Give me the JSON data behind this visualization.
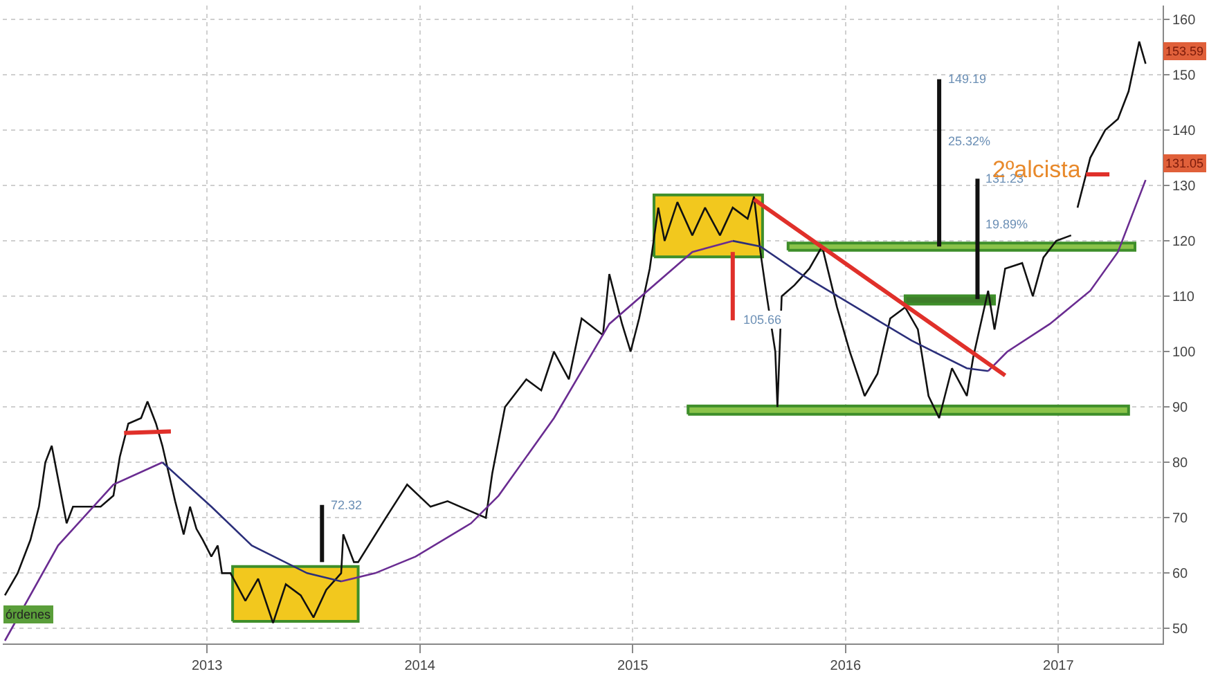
{
  "chart_data": {
    "type": "line",
    "xlim": [
      2012.04,
      2017.49
    ],
    "xticks": [
      2013,
      2014,
      2015,
      2016,
      2017
    ],
    "ylim": [
      47.3,
      162.5
    ],
    "yticks": [
      50,
      60,
      70,
      80,
      90,
      100,
      110,
      120,
      130,
      140,
      150,
      160
    ],
    "grid": true,
    "marker": "none",
    "line_style": "solid",
    "series": [
      {
        "type": "area",
        "color": "#f2c81e",
        "x": [
          2013.12,
          2013.71,
          2013.71,
          2013.12,
          2013.12
        ],
        "values": [
          51.3,
          51.3,
          61.2,
          61.2,
          51.3
        ]
      },
      {
        "type": "area",
        "color": "#f2c81e",
        "x": [
          2015.1,
          2015.61,
          2015.61,
          2015.1,
          2015.1
        ],
        "values": [
          117.1,
          117.1,
          128.3,
          128.3,
          117.1
        ]
      },
      {
        "type": "area",
        "color": "#8bc34a",
        "x": [
          2015.73,
          2017.36,
          2017.36,
          2015.73,
          2015.73
        ],
        "values": [
          118.3,
          118.3,
          119.6,
          119.6,
          118.3
        ]
      },
      {
        "type": "area",
        "color": "#8bc34a",
        "x": [
          2015.26,
          2017.33,
          2017.33,
          2015.26,
          2015.26
        ],
        "values": [
          88.7,
          88.7,
          90.2,
          90.2,
          88.7
        ]
      },
      {
        "type": "area",
        "color": "#3e7d2a",
        "x": [
          2016.28,
          2016.7,
          2016.7,
          2016.28,
          2016.28
        ],
        "values": [
          108.6,
          108.6,
          110.1,
          110.1,
          108.6
        ]
      },
      {
        "color": "#111111",
        "x": [
          2012.05,
          2012.11,
          2012.17,
          2012.21,
          2012.24,
          2012.27,
          2012.3,
          2012.34,
          2012.37,
          2012.43,
          2012.5,
          2012.56,
          2012.59,
          2012.63,
          2012.69,
          2012.72,
          2012.76,
          2012.79,
          2012.82,
          2012.85,
          2012.89,
          2012.92,
          2012.95,
          2012.98,
          2013.02,
          2013.05,
          2013.07,
          2013.11,
          2013.18,
          2013.24,
          2013.31,
          2013.37,
          2013.44,
          2013.5,
          2013.56,
          2013.63,
          2013.64,
          2013.69,
          2013.71,
          2013.84,
          2013.94,
          2014.05,
          2014.13,
          2014.31,
          2014.34,
          2014.4,
          2014.5,
          2014.57,
          2014.63,
          2014.7,
          2014.76,
          2014.86,
          2014.89,
          2014.95,
          2014.99,
          2015.03,
          2015.08,
          2015.12,
          2015.15,
          2015.21,
          2015.28,
          2015.34,
          2015.41,
          2015.47,
          2015.54,
          2015.57,
          2015.6,
          2015.63,
          2015.67,
          2015.68,
          2015.7,
          2015.76,
          2015.83,
          2015.89,
          2015.96,
          2016.02,
          2016.09,
          2016.15,
          2016.21,
          2016.28,
          2016.34,
          2016.39,
          2016.44,
          2016.5,
          2016.57,
          2016.6,
          2016.67,
          2016.7,
          2016.75,
          2016.83,
          2016.88,
          2016.93,
          2016.99,
          2017.06,
          2017.08,
          2017.09,
          2017.15,
          2017.22,
          2017.28,
          2017.33,
          2017.38,
          2017.41
        ],
        "values": [
          56,
          60,
          66,
          72,
          80,
          83,
          77,
          69,
          72,
          72,
          72,
          74,
          81,
          87,
          88,
          91,
          87,
          83,
          78,
          73,
          67,
          72,
          68,
          66,
          63,
          65,
          60,
          60,
          55,
          59,
          51,
          58,
          56,
          52,
          57,
          60,
          67,
          62,
          62,
          70,
          76,
          72,
          73,
          70,
          78,
          90,
          95,
          93,
          100,
          95,
          106,
          103,
          114,
          105,
          100,
          106,
          115,
          126,
          120,
          127,
          121,
          126,
          121,
          126,
          124,
          128,
          118,
          110,
          100,
          90,
          110,
          112,
          115,
          119,
          108,
          100,
          92,
          96,
          106,
          108,
          104,
          92,
          88,
          97,
          92,
          99,
          111,
          104,
          115,
          116,
          110,
          117,
          120,
          121,
          null,
          126,
          135,
          140,
          142,
          147,
          156,
          152
        ]
      },
      {
        "color": "#6a2c91",
        "x": [
          2012.05,
          2012.3,
          2012.56,
          2012.79,
          2013.2,
          2013.63,
          2013.79,
          2013.98,
          2014.24,
          2014.37,
          2014.63,
          2014.89,
          2015.28,
          2015.47,
          2016.0,
          2016.67,
          2016.76,
          2016.96,
          2017.15,
          2017.28,
          2017.41
        ],
        "values": [
          47.8,
          65,
          76,
          80,
          null,
          58.5,
          60,
          63,
          69,
          74,
          88,
          105,
          118,
          120,
          null,
          96.5,
          100,
          105,
          111,
          118,
          131
        ]
      },
      {
        "color": "#2b2f7a",
        "x": [
          2012.79,
          2013.02,
          2013.21,
          2013.47,
          2013.63,
          2014.5,
          2015.47,
          2015.6,
          2015.79,
          2016.05,
          2016.31,
          2016.57,
          2016.67
        ],
        "values": [
          80,
          72,
          65,
          60,
          58.5,
          null,
          120,
          119,
          114,
          108,
          102,
          97,
          96.5
        ]
      },
      {
        "type": "line",
        "color": "#e0302a",
        "x": [
          2012.61,
          2012.83
        ],
        "values": [
          85.3,
          85.6
        ]
      },
      {
        "type": "line",
        "color": "#e0302a",
        "x": [
          2015.57,
          2016.75
        ],
        "values": [
          127.5,
          95.7
        ]
      },
      {
        "type": "line",
        "color": "#e0302a",
        "x": [
          2017.13,
          2017.24
        ],
        "values": [
          132,
          132
        ]
      },
      {
        "type": "line",
        "color": "#e0302a",
        "x": [
          2015.47,
          2015.47
        ],
        "values": [
          118,
          105.66
        ]
      },
      {
        "type": "line",
        "color": "#111111",
        "x": [
          2013.54,
          2013.54
        ],
        "values": [
          62,
          72.32
        ]
      },
      {
        "type": "line",
        "color": "#111111",
        "x": [
          2016.44,
          2016.44
        ],
        "values": [
          119,
          149.19
        ]
      },
      {
        "type": "line",
        "color": "#111111",
        "x": [
          2016.62,
          2016.62
        ],
        "values": [
          109.5,
          131.23
        ]
      }
    ],
    "annotations": [
      {
        "text": "72.32",
        "x": 2013.54,
        "y": 72.32
      },
      {
        "text": "149.19",
        "x": 2016.44,
        "y": 149.19
      },
      {
        "text": "25.32%",
        "x": 2016.44,
        "y": 138
      },
      {
        "text": "131.23",
        "x": 2016.62,
        "y": 131.23
      },
      {
        "text": "19.89%",
        "x": 2016.62,
        "y": 123
      },
      {
        "text": "105.66",
        "x": 2015.47,
        "y": 105.66
      },
      {
        "text": "2ºalcista",
        "x": 2017.13,
        "y": 133
      },
      "153.59",
      "131.05",
      "órdenes"
    ]
  }
}
